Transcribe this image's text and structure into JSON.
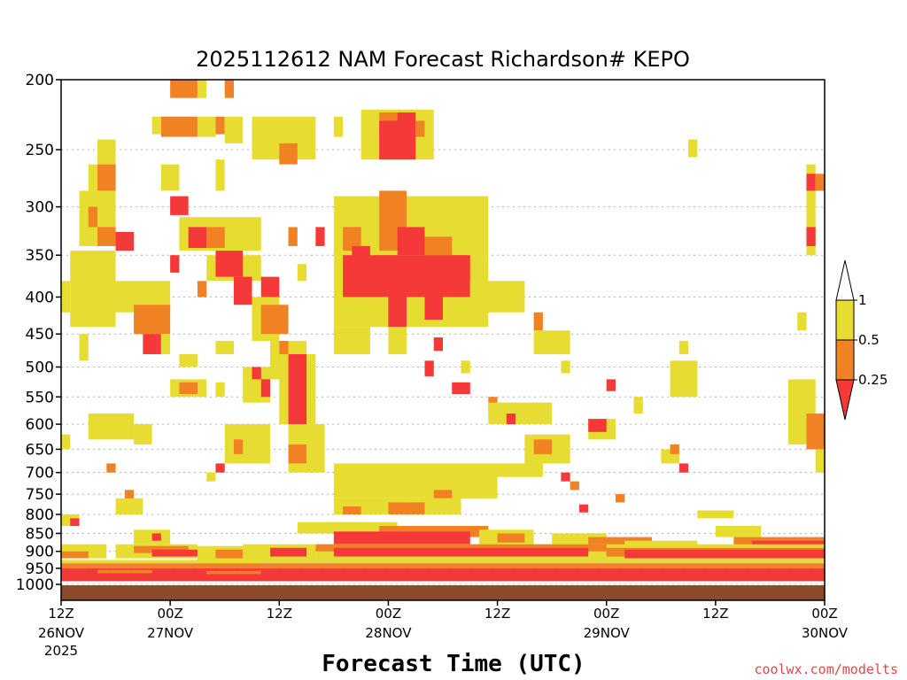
{
  "chart_data": {
    "type": "heatmap",
    "title": "2025112612 NAM Forecast Richardson# KEPO",
    "xlabel": "Forecast Time (UTC)",
    "ylabel": "",
    "credit": "coolwx.com/modelts",
    "x_unit": "hours since 2025-11-26 12Z",
    "xlim": [
      0,
      84
    ],
    "ylim": [
      200,
      1000
    ],
    "y_scale": "log-pressure",
    "y_ticks": [
      200,
      250,
      300,
      350,
      400,
      450,
      500,
      550,
      600,
      650,
      700,
      750,
      800,
      850,
      900,
      950,
      1000
    ],
    "x_ticks": [
      {
        "hour": 0,
        "time": "12Z",
        "date": "26NOV",
        "year": "2025"
      },
      {
        "hour": 12,
        "time": "00Z",
        "date": "27NOV",
        "year": ""
      },
      {
        "hour": 24,
        "time": "12Z",
        "date": "",
        "year": ""
      },
      {
        "hour": 36,
        "time": "00Z",
        "date": "28NOV",
        "year": ""
      },
      {
        "hour": 48,
        "time": "12Z",
        "date": "",
        "year": ""
      },
      {
        "hour": 60,
        "time": "00Z",
        "date": "29NOV",
        "year": ""
      },
      {
        "hour": 72,
        "time": "12Z",
        "date": "",
        "year": ""
      },
      {
        "hour": 84,
        "time": "00Z",
        "date": "30NOV",
        "year": ""
      }
    ],
    "legend": {
      "position": "right",
      "bins": [
        {
          "min": 0,
          "max": 0.25,
          "color": "#f53838"
        },
        {
          "min": 0.25,
          "max": 0.5,
          "color": "#f08224"
        },
        {
          "min": 0.5,
          "max": 1,
          "color": "#e6dc32"
        },
        {
          "min": 1,
          "max": null,
          "color": "#ffffff"
        }
      ],
      "labels": [
        "1",
        "0.5",
        "0.25"
      ]
    },
    "ground_color": "#8b4a2b",
    "cells": [
      {
        "x0": 12,
        "x1": 15,
        "p0": 200,
        "p1": 212,
        "v": "O"
      },
      {
        "x0": 15,
        "x1": 16,
        "p0": 200,
        "p1": 212,
        "v": "Y"
      },
      {
        "x0": 18,
        "x1": 19,
        "p0": 200,
        "p1": 212,
        "v": "O"
      },
      {
        "x0": 10,
        "x1": 11,
        "p0": 225,
        "p1": 238,
        "v": "Y"
      },
      {
        "x0": 11,
        "x1": 15,
        "p0": 225,
        "p1": 240,
        "v": "O"
      },
      {
        "x0": 15,
        "x1": 17,
        "p0": 225,
        "p1": 240,
        "v": "Y"
      },
      {
        "x0": 17,
        "x1": 18,
        "p0": 225,
        "p1": 238,
        "v": "O"
      },
      {
        "x0": 18,
        "x1": 20,
        "p0": 225,
        "p1": 245,
        "v": "Y"
      },
      {
        "x0": 21,
        "x1": 28,
        "p0": 225,
        "p1": 258,
        "v": "Y"
      },
      {
        "x0": 24,
        "x1": 26,
        "p0": 245,
        "p1": 262,
        "v": "O"
      },
      {
        "x0": 30,
        "x1": 31,
        "p0": 225,
        "p1": 240,
        "v": "Y"
      },
      {
        "x0": 33,
        "x1": 41,
        "p0": 220,
        "p1": 258,
        "v": "Y"
      },
      {
        "x0": 35,
        "x1": 36,
        "p0": 222,
        "p1": 238,
        "v": "O"
      },
      {
        "x0": 36,
        "x1": 38,
        "p0": 222,
        "p1": 235,
        "v": "O"
      },
      {
        "x0": 35,
        "x1": 39,
        "p0": 228,
        "p1": 258,
        "v": "R"
      },
      {
        "x0": 37,
        "x1": 39,
        "p0": 222,
        "p1": 235,
        "v": "R"
      },
      {
        "x0": 39,
        "x1": 40,
        "p0": 228,
        "p1": 240,
        "v": "O"
      },
      {
        "x0": 4,
        "x1": 6,
        "p0": 242,
        "p1": 262,
        "v": "Y"
      },
      {
        "x0": 3,
        "x1": 6,
        "p0": 262,
        "p1": 285,
        "v": "Y"
      },
      {
        "x0": 4,
        "x1": 6,
        "p0": 262,
        "p1": 285,
        "v": "O"
      },
      {
        "x0": 11,
        "x1": 13,
        "p0": 262,
        "p1": 285,
        "v": "Y"
      },
      {
        "x0": 17,
        "x1": 18,
        "p0": 258,
        "p1": 285,
        "v": "Y"
      },
      {
        "x0": 69,
        "x1": 70,
        "p0": 242,
        "p1": 256,
        "v": "Y"
      },
      {
        "x0": 82,
        "x1": 83,
        "p0": 262,
        "p1": 350,
        "v": "Y"
      },
      {
        "x0": 82,
        "x1": 83,
        "p0": 270,
        "p1": 285,
        "v": "R"
      },
      {
        "x0": 83,
        "x1": 84,
        "p0": 270,
        "p1": 285,
        "v": "O"
      },
      {
        "x0": 2,
        "x1": 6,
        "p0": 285,
        "p1": 340,
        "v": "Y"
      },
      {
        "x0": 3,
        "x1": 4,
        "p0": 300,
        "p1": 320,
        "v": "O"
      },
      {
        "x0": 4,
        "x1": 6,
        "p0": 320,
        "p1": 340,
        "v": "O"
      },
      {
        "x0": 6,
        "x1": 8,
        "p0": 325,
        "p1": 345,
        "v": "R"
      },
      {
        "x0": 12,
        "x1": 14,
        "p0": 290,
        "p1": 308,
        "v": "R"
      },
      {
        "x0": 13,
        "x1": 22,
        "p0": 310,
        "p1": 345,
        "v": "Y"
      },
      {
        "x0": 14,
        "x1": 16,
        "p0": 320,
        "p1": 342,
        "v": "R"
      },
      {
        "x0": 16,
        "x1": 18,
        "p0": 320,
        "p1": 342,
        "v": "O"
      },
      {
        "x0": 25,
        "x1": 26,
        "p0": 320,
        "p1": 340,
        "v": "O"
      },
      {
        "x0": 28,
        "x1": 29,
        "p0": 320,
        "p1": 340,
        "v": "R"
      },
      {
        "x0": 30,
        "x1": 47,
        "p0": 290,
        "p1": 350,
        "v": "Y"
      },
      {
        "x0": 35,
        "x1": 38,
        "p0": 285,
        "p1": 345,
        "v": "O"
      },
      {
        "x0": 31,
        "x1": 33,
        "p0": 320,
        "p1": 345,
        "v": "O"
      },
      {
        "x0": 37,
        "x1": 40,
        "p0": 320,
        "p1": 350,
        "v": "R"
      },
      {
        "x0": 40,
        "x1": 43,
        "p0": 330,
        "p1": 350,
        "v": "O"
      },
      {
        "x0": 82,
        "x1": 83,
        "p0": 320,
        "p1": 340,
        "v": "R"
      },
      {
        "x0": 1,
        "x1": 6,
        "p0": 345,
        "p1": 440,
        "v": "Y"
      },
      {
        "x0": 6,
        "x1": 12,
        "p0": 380,
        "p1": 420,
        "v": "Y"
      },
      {
        "x0": 8,
        "x1": 12,
        "p0": 410,
        "p1": 450,
        "v": "O"
      },
      {
        "x0": 9,
        "x1": 11,
        "p0": 450,
        "p1": 480,
        "v": "R"
      },
      {
        "x0": 11,
        "x1": 12,
        "p0": 450,
        "p1": 480,
        "v": "Y"
      },
      {
        "x0": 12,
        "x1": 13,
        "p0": 350,
        "p1": 370,
        "v": "R"
      },
      {
        "x0": 16,
        "x1": 22,
        "p0": 350,
        "p1": 380,
        "v": "Y"
      },
      {
        "x0": 17,
        "x1": 20,
        "p0": 345,
        "p1": 375,
        "v": "R"
      },
      {
        "x0": 19,
        "x1": 21,
        "p0": 375,
        "p1": 410,
        "v": "R"
      },
      {
        "x0": 22,
        "x1": 24,
        "p0": 375,
        "p1": 400,
        "v": "R"
      },
      {
        "x0": 21,
        "x1": 24,
        "p0": 400,
        "p1": 460,
        "v": "Y"
      },
      {
        "x0": 22,
        "x1": 25,
        "p0": 410,
        "p1": 450,
        "v": "O"
      },
      {
        "x0": 15,
        "x1": 16,
        "p0": 380,
        "p1": 400,
        "v": "O"
      },
      {
        "x0": 26,
        "x1": 27,
        "p0": 360,
        "p1": 380,
        "v": "Y"
      },
      {
        "x0": 30,
        "x1": 47,
        "p0": 350,
        "p1": 440,
        "v": "Y"
      },
      {
        "x0": 31,
        "x1": 45,
        "p0": 350,
        "p1": 400,
        "v": "R"
      },
      {
        "x0": 32,
        "x1": 34,
        "p0": 340,
        "p1": 360,
        "v": "R"
      },
      {
        "x0": 36,
        "x1": 38,
        "p0": 400,
        "p1": 440,
        "v": "R"
      },
      {
        "x0": 40,
        "x1": 42,
        "p0": 400,
        "p1": 430,
        "v": "R"
      },
      {
        "x0": 45,
        "x1": 51,
        "p0": 380,
        "p1": 420,
        "v": "Y"
      },
      {
        "x0": 52,
        "x1": 53,
        "p0": 420,
        "p1": 445,
        "v": "O"
      },
      {
        "x0": 52,
        "x1": 56,
        "p0": 445,
        "p1": 480,
        "v": "Y"
      },
      {
        "x0": 81,
        "x1": 82,
        "p0": 420,
        "p1": 445,
        "v": "Y"
      },
      {
        "x0": 0,
        "x1": 1,
        "p0": 380,
        "p1": 420,
        "v": "Y"
      },
      {
        "x0": 2,
        "x1": 3,
        "p0": 450,
        "p1": 490,
        "v": "Y"
      },
      {
        "x0": 13,
        "x1": 15,
        "p0": 480,
        "p1": 500,
        "v": "Y"
      },
      {
        "x0": 17,
        "x1": 19,
        "p0": 460,
        "p1": 480,
        "v": "Y"
      },
      {
        "x0": 23,
        "x1": 27,
        "p0": 460,
        "p1": 520,
        "v": "Y"
      },
      {
        "x0": 24,
        "x1": 25,
        "p0": 460,
        "p1": 490,
        "v": "O"
      },
      {
        "x0": 30,
        "x1": 34,
        "p0": 440,
        "p1": 480,
        "v": "Y"
      },
      {
        "x0": 36,
        "x1": 38,
        "p0": 440,
        "p1": 480,
        "v": "Y"
      },
      {
        "x0": 41,
        "x1": 42,
        "p0": 455,
        "p1": 475,
        "v": "R"
      },
      {
        "x0": 40,
        "x1": 41,
        "p0": 490,
        "p1": 515,
        "v": "R"
      },
      {
        "x0": 44,
        "x1": 45,
        "p0": 490,
        "p1": 510,
        "v": "Y"
      },
      {
        "x0": 55,
        "x1": 56,
        "p0": 490,
        "p1": 510,
        "v": "Y"
      },
      {
        "x0": 68,
        "x1": 69,
        "p0": 460,
        "p1": 480,
        "v": "Y"
      },
      {
        "x0": 67,
        "x1": 70,
        "p0": 490,
        "p1": 550,
        "v": "Y"
      },
      {
        "x0": 12,
        "x1": 16,
        "p0": 520,
        "p1": 550,
        "v": "Y"
      },
      {
        "x0": 13,
        "x1": 15,
        "p0": 525,
        "p1": 545,
        "v": "O"
      },
      {
        "x0": 17,
        "x1": 18,
        "p0": 525,
        "p1": 550,
        "v": "Y"
      },
      {
        "x0": 20,
        "x1": 23,
        "p0": 500,
        "p1": 560,
        "v": "Y"
      },
      {
        "x0": 21,
        "x1": 22,
        "p0": 500,
        "p1": 520,
        "v": "R"
      },
      {
        "x0": 22,
        "x1": 23,
        "p0": 520,
        "p1": 550,
        "v": "R"
      },
      {
        "x0": 24,
        "x1": 28,
        "p0": 480,
        "p1": 600,
        "v": "Y"
      },
      {
        "x0": 25,
        "x1": 27,
        "p0": 480,
        "p1": 600,
        "v": "R"
      },
      {
        "x0": 43,
        "x1": 45,
        "p0": 525,
        "p1": 545,
        "v": "R"
      },
      {
        "x0": 47,
        "x1": 48,
        "p0": 550,
        "p1": 580,
        "v": "O"
      },
      {
        "x0": 47,
        "x1": 54,
        "p0": 560,
        "p1": 600,
        "v": "Y"
      },
      {
        "x0": 49,
        "x1": 50,
        "p0": 580,
        "p1": 600,
        "v": "R"
      },
      {
        "x0": 60,
        "x1": 61,
        "p0": 520,
        "p1": 540,
        "v": "R"
      },
      {
        "x0": 63,
        "x1": 64,
        "p0": 550,
        "p1": 580,
        "v": "Y"
      },
      {
        "x0": 80,
        "x1": 83,
        "p0": 520,
        "p1": 640,
        "v": "Y"
      },
      {
        "x0": 82,
        "x1": 84,
        "p0": 580,
        "p1": 650,
        "v": "O"
      },
      {
        "x0": 83,
        "x1": 84,
        "p0": 650,
        "p1": 700,
        "v": "Y"
      },
      {
        "x0": 3,
        "x1": 8,
        "p0": 580,
        "p1": 630,
        "v": "Y"
      },
      {
        "x0": 0,
        "x1": 1,
        "p0": 620,
        "p1": 650,
        "v": "Y"
      },
      {
        "x0": 8,
        "x1": 10,
        "p0": 600,
        "p1": 640,
        "v": "Y"
      },
      {
        "x0": 18,
        "x1": 23,
        "p0": 600,
        "p1": 680,
        "v": "Y"
      },
      {
        "x0": 19,
        "x1": 20,
        "p0": 630,
        "p1": 660,
        "v": "O"
      },
      {
        "x0": 25,
        "x1": 29,
        "p0": 600,
        "p1": 700,
        "v": "Y"
      },
      {
        "x0": 25,
        "x1": 27,
        "p0": 640,
        "p1": 680,
        "v": "O"
      },
      {
        "x0": 51,
        "x1": 56,
        "p0": 620,
        "p1": 680,
        "v": "Y"
      },
      {
        "x0": 52,
        "x1": 54,
        "p0": 630,
        "p1": 660,
        "v": "O"
      },
      {
        "x0": 58,
        "x1": 61,
        "p0": 590,
        "p1": 630,
        "v": "Y"
      },
      {
        "x0": 58,
        "x1": 60,
        "p0": 590,
        "p1": 615,
        "v": "R"
      },
      {
        "x0": 66,
        "x1": 68,
        "p0": 650,
        "p1": 680,
        "v": "Y"
      },
      {
        "x0": 67,
        "x1": 68,
        "p0": 640,
        "p1": 660,
        "v": "O"
      },
      {
        "x0": 68,
        "x1": 69,
        "p0": 680,
        "p1": 700,
        "v": "R"
      },
      {
        "x0": 17,
        "x1": 18,
        "p0": 680,
        "p1": 700,
        "v": "R"
      },
      {
        "x0": 5,
        "x1": 6,
        "p0": 680,
        "p1": 700,
        "v": "O"
      },
      {
        "x0": 16,
        "x1": 17,
        "p0": 700,
        "p1": 720,
        "v": "Y"
      },
      {
        "x0": 30,
        "x1": 48,
        "p0": 680,
        "p1": 760,
        "v": "Y"
      },
      {
        "x0": 38,
        "x1": 46,
        "p0": 700,
        "p1": 760,
        "v": "Y"
      },
      {
        "x0": 41,
        "x1": 43,
        "p0": 740,
        "p1": 760,
        "v": "O"
      },
      {
        "x0": 48,
        "x1": 53,
        "p0": 680,
        "p1": 710,
        "v": "Y"
      },
      {
        "x0": 55,
        "x1": 56,
        "p0": 700,
        "p1": 720,
        "v": "R"
      },
      {
        "x0": 56,
        "x1": 57,
        "p0": 720,
        "p1": 740,
        "v": "O"
      },
      {
        "x0": 7,
        "x1": 8,
        "p0": 740,
        "p1": 780,
        "v": "O"
      },
      {
        "x0": 6,
        "x1": 9,
        "p0": 760,
        "p1": 800,
        "v": "Y"
      },
      {
        "x0": 30,
        "x1": 44,
        "p0": 760,
        "p1": 800,
        "v": "Y"
      },
      {
        "x0": 36,
        "x1": 40,
        "p0": 770,
        "p1": 800,
        "v": "O"
      },
      {
        "x0": 31,
        "x1": 33,
        "p0": 780,
        "p1": 800,
        "v": "O"
      },
      {
        "x0": 61,
        "x1": 62,
        "p0": 750,
        "p1": 770,
        "v": "O"
      },
      {
        "x0": 57,
        "x1": 58,
        "p0": 775,
        "p1": 795,
        "v": "R"
      },
      {
        "x0": 70,
        "x1": 74,
        "p0": 790,
        "p1": 810,
        "v": "Y"
      },
      {
        "x0": 72,
        "x1": 77,
        "p0": 830,
        "p1": 860,
        "v": "Y"
      },
      {
        "x0": 0,
        "x1": 2,
        "p0": 800,
        "p1": 830,
        "v": "Y"
      },
      {
        "x0": 1,
        "x1": 2,
        "p0": 810,
        "p1": 830,
        "v": "R"
      },
      {
        "x0": 8,
        "x1": 12,
        "p0": 840,
        "p1": 880,
        "v": "Y"
      },
      {
        "x0": 10,
        "x1": 11,
        "p0": 850,
        "p1": 870,
        "v": "R"
      },
      {
        "x0": 26,
        "x1": 37,
        "p0": 820,
        "p1": 850,
        "v": "Y"
      },
      {
        "x0": 35,
        "x1": 47,
        "p0": 830,
        "p1": 860,
        "v": "O"
      },
      {
        "x0": 30,
        "x1": 45,
        "p0": 845,
        "p1": 880,
        "v": "R"
      },
      {
        "x0": 46,
        "x1": 52,
        "p0": 840,
        "p1": 880,
        "v": "Y"
      },
      {
        "x0": 48,
        "x1": 51,
        "p0": 850,
        "p1": 875,
        "v": "O"
      },
      {
        "x0": 54,
        "x1": 60,
        "p0": 850,
        "p1": 880,
        "v": "Y"
      },
      {
        "x0": 58,
        "x1": 65,
        "p0": 860,
        "p1": 890,
        "v": "O"
      },
      {
        "x0": 62,
        "x1": 70,
        "p0": 870,
        "p1": 895,
        "v": "Y"
      },
      {
        "x0": 74,
        "x1": 84,
        "p0": 860,
        "p1": 890,
        "v": "O"
      },
      {
        "x0": 76,
        "x1": 84,
        "p0": 870,
        "p1": 895,
        "v": "R"
      },
      {
        "x0": 0,
        "x1": 5,
        "p0": 880,
        "p1": 920,
        "v": "Y"
      },
      {
        "x0": 0,
        "x1": 3,
        "p0": 900,
        "p1": 920,
        "v": "O"
      },
      {
        "x0": 6,
        "x1": 15,
        "p0": 880,
        "p1": 920,
        "v": "Y"
      },
      {
        "x0": 8,
        "x1": 14,
        "p0": 885,
        "p1": 905,
        "v": "O"
      },
      {
        "x0": 10,
        "x1": 16,
        "p0": 895,
        "p1": 915,
        "v": "R"
      },
      {
        "x0": 15,
        "x1": 22,
        "p0": 885,
        "p1": 930,
        "v": "Y"
      },
      {
        "x0": 17,
        "x1": 20,
        "p0": 895,
        "p1": 920,
        "v": "O"
      },
      {
        "x0": 20,
        "x1": 28,
        "p0": 880,
        "p1": 925,
        "v": "Y"
      },
      {
        "x0": 23,
        "x1": 27,
        "p0": 890,
        "p1": 915,
        "v": "R"
      },
      {
        "x0": 28,
        "x1": 84,
        "p0": 880,
        "p1": 925,
        "v": "Y"
      },
      {
        "x0": 28,
        "x1": 60,
        "p0": 880,
        "p1": 900,
        "v": "O"
      },
      {
        "x0": 30,
        "x1": 58,
        "p0": 890,
        "p1": 915,
        "v": "R"
      },
      {
        "x0": 60,
        "x1": 84,
        "p0": 890,
        "p1": 915,
        "v": "O"
      },
      {
        "x0": 62,
        "x1": 84,
        "p0": 895,
        "p1": 920,
        "v": "R"
      },
      {
        "x0": 0,
        "x1": 84,
        "p0": 925,
        "p1": 935,
        "v": "Y"
      },
      {
        "x0": 0,
        "x1": 84,
        "p0": 935,
        "p1": 950,
        "v": "O"
      },
      {
        "x0": 0,
        "x1": 84,
        "p0": 950,
        "p1": 990,
        "v": "R"
      },
      {
        "x0": 4,
        "x1": 10,
        "p0": 955,
        "p1": 965,
        "v": "O"
      },
      {
        "x0": 16,
        "x1": 22,
        "p0": 958,
        "p1": 968,
        "v": "O"
      }
    ]
  }
}
